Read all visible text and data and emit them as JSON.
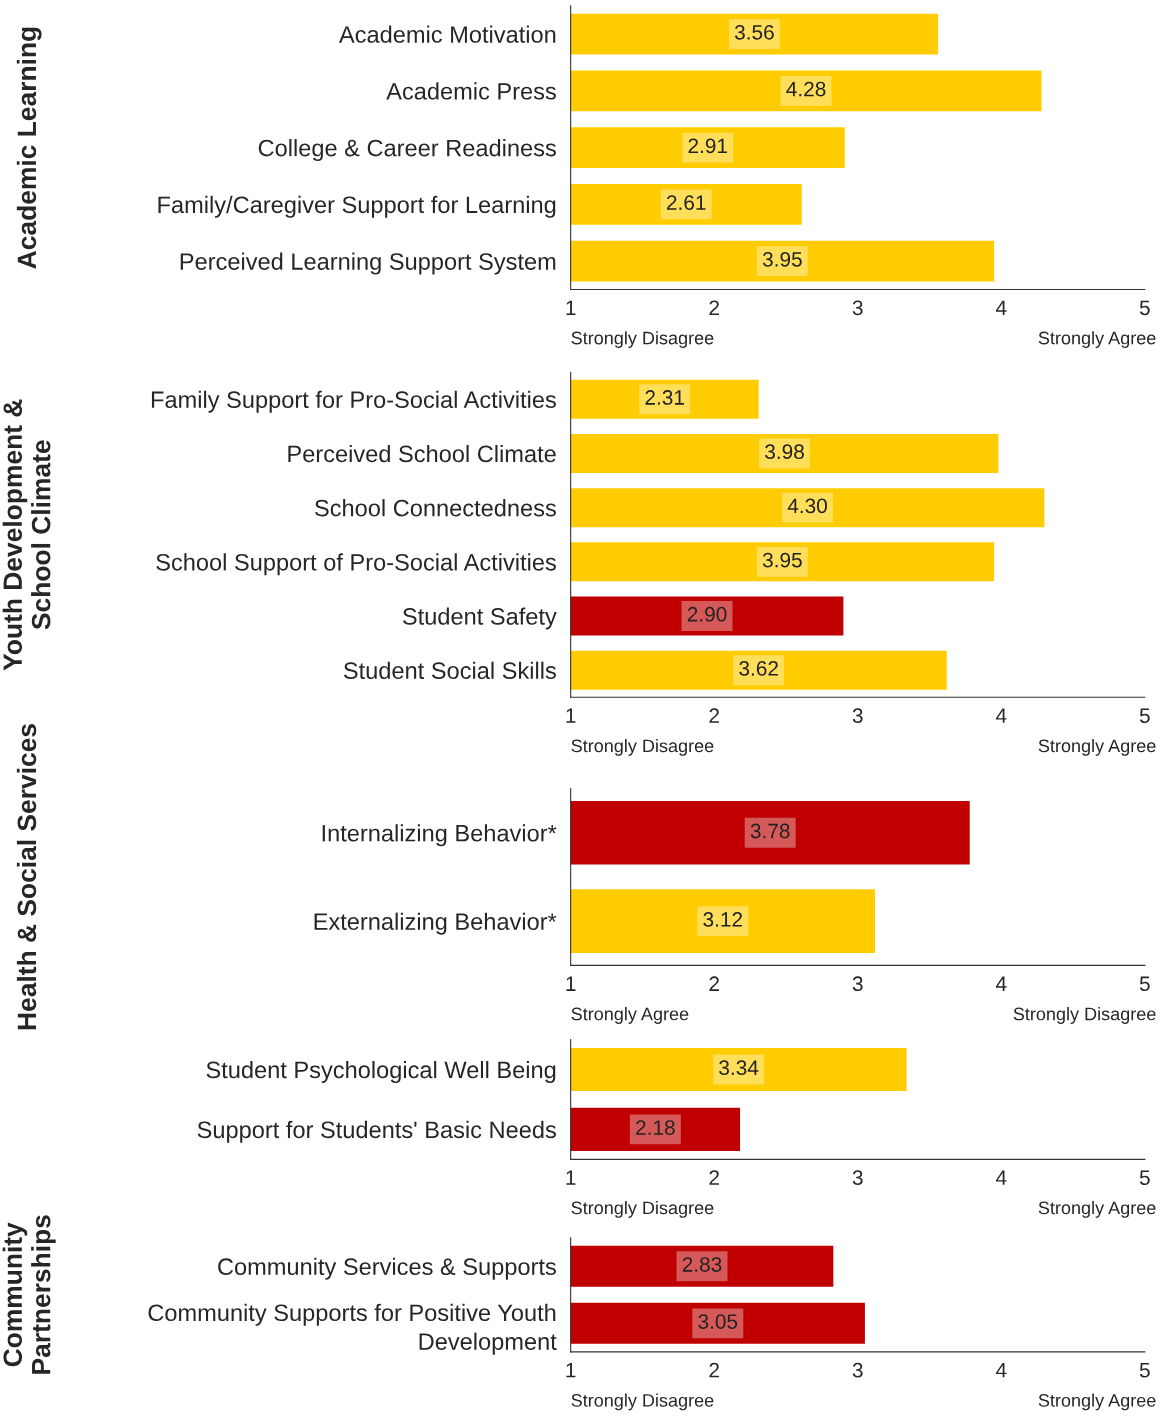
{
  "chart_data": [
    {
      "type": "bar",
      "orientation": "horizontal",
      "ylabel": "Academic Learning",
      "categories": [
        "Academic Motivation",
        "Academic Press",
        "College & Career Readiness",
        "Family/Caregiver Support for Learning",
        "Perceived Learning Support System"
      ],
      "values": [
        3.56,
        4.28,
        2.91,
        2.61,
        3.95
      ],
      "colors": [
        "#ffcc00",
        "#ffcc00",
        "#ffcc00",
        "#ffcc00",
        "#ffcc00"
      ],
      "xlim": [
        1,
        5
      ],
      "xticks": [
        1,
        2,
        3,
        4,
        5
      ],
      "data_labels": true,
      "grid": false,
      "legend": false,
      "annotations": [
        "Strongly Disagree",
        "Strongly Agree"
      ]
    },
    {
      "type": "bar",
      "orientation": "horizontal",
      "ylabel": "Youth Development &\nSchool Climate",
      "categories": [
        "Family Support for Pro-Social Activities",
        "Perceived School Climate",
        "School Connectedness",
        "School Support of Pro-Social Activities",
        "Student Safety",
        "Student Social Skills"
      ],
      "values": [
        2.31,
        3.98,
        4.3,
        3.95,
        2.9,
        3.62
      ],
      "value_labels": [
        "2.31",
        "3.98",
        "4.30",
        "3.95",
        "2.90",
        "3.62"
      ],
      "colors": [
        "#ffcc00",
        "#ffcc00",
        "#ffcc00",
        "#ffcc00",
        "#c00000",
        "#ffcc00"
      ],
      "xlim": [
        1,
        5
      ],
      "xticks": [
        1,
        2,
        3,
        4,
        5
      ],
      "grid": false,
      "legend": false,
      "annotations": [
        "Strongly Disagree",
        "Strongly Agree"
      ]
    },
    {
      "type": "bar",
      "orientation": "horizontal",
      "ylabel": "Health & Social Services",
      "categories": [
        "Internalizing Behavior*",
        "Externalizing Behavior*"
      ],
      "values": [
        3.78,
        3.12
      ],
      "colors": [
        "#c00000",
        "#ffcc00"
      ],
      "xlim": [
        1,
        5
      ],
      "xticks": [
        1,
        2,
        3,
        4,
        5
      ],
      "data_labels": true,
      "grid": false,
      "legend": false,
      "annotations": [
        "Strongly Agree",
        "Strongly Disagree"
      ]
    },
    {
      "type": "bar",
      "orientation": "horizontal",
      "categories": [
        "Student Psychological Well Being",
        "Support for Students' Basic Needs"
      ],
      "values": [
        3.34,
        2.18
      ],
      "colors": [
        "#ffcc00",
        "#c00000"
      ],
      "xlim": [
        1,
        5
      ],
      "xticks": [
        1,
        2,
        3,
        4,
        5
      ],
      "data_labels": true,
      "grid": false,
      "legend": false,
      "annotations": [
        "Strongly Disagree",
        "Strongly Agree"
      ]
    },
    {
      "type": "bar",
      "orientation": "horizontal",
      "ylabel": "Community\nPartnerships",
      "categories": [
        "Community Services & Supports",
        "Community Supports for Positive Youth\nDevelopment"
      ],
      "values": [
        2.83,
        3.05
      ],
      "colors": [
        "#c00000",
        "#c00000"
      ],
      "xlim": [
        1,
        5
      ],
      "xticks": [
        1,
        2,
        3,
        4,
        5
      ],
      "data_labels": true,
      "grid": false,
      "legend": false,
      "annotations": [
        "Strongly Disagree",
        "Strongly Agree"
      ]
    }
  ]
}
